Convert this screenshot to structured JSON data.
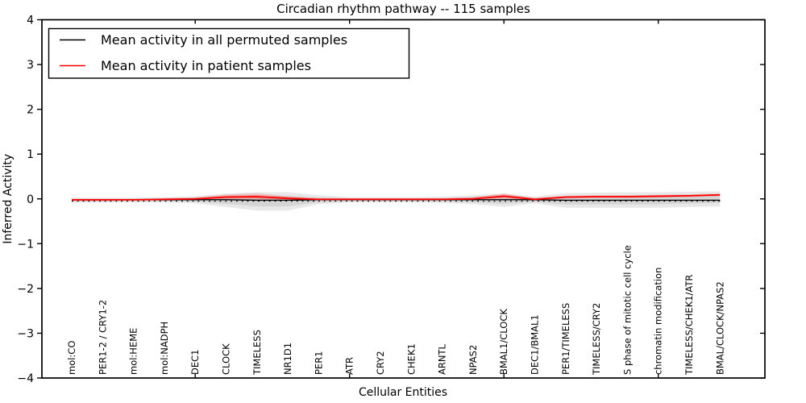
{
  "chart_data": {
    "type": "line",
    "title": "Circadian rhythm pathway -- 115 samples",
    "xlabel": "Cellular Entities",
    "ylabel": "Inferred Activity",
    "ylim": [
      -4,
      4
    ],
    "yticks": [
      -4,
      -3,
      -2,
      -1,
      0,
      1,
      2,
      3,
      4
    ],
    "grid": false,
    "background_color": "#ffffff",
    "axis_color": "#000000",
    "categories": [
      "mol:CO",
      "PER1-2 / CRY1-2",
      "mol:HEME",
      "mol:NADPH",
      "DEC1",
      "CLOCK",
      "TIMELESS",
      "NR1D1",
      "PER1",
      "ATR",
      "CRY2",
      "CHEK1",
      "ARNTL",
      "NPAS2",
      "BMAL1/CLOCK",
      "DEC1/BMAL1",
      "PER1/TIMELESS",
      "TIMELESS/CRY2",
      "S phase of mitotic cell cycle",
      "chromatin modification",
      "TIMELESS/CHEK1/ATR",
      "BMAL/CLOCK/NPAS2"
    ],
    "series": [
      {
        "name": "Mean activity in all permuted samples",
        "color": "#000000",
        "linewidth": 1.4,
        "values": [
          -0.02,
          -0.02,
          -0.02,
          -0.02,
          -0.02,
          -0.02,
          -0.03,
          -0.03,
          -0.02,
          -0.02,
          -0.02,
          -0.02,
          -0.02,
          -0.02,
          -0.02,
          -0.02,
          -0.03,
          -0.03,
          -0.03,
          -0.03,
          -0.03,
          -0.03
        ]
      },
      {
        "name": "Mean activity in patient samples",
        "color": "#ff0000",
        "linewidth": 1.8,
        "values": [
          -0.02,
          -0.02,
          -0.02,
          -0.01,
          0.0,
          0.04,
          0.05,
          0.01,
          -0.01,
          -0.01,
          -0.01,
          -0.01,
          -0.01,
          0.0,
          0.06,
          -0.01,
          0.04,
          0.05,
          0.05,
          0.06,
          0.07,
          0.09
        ]
      }
    ],
    "bands": [
      {
        "name": "permuted-samples-spread",
        "color": "#000000",
        "opacity": 0.09,
        "upper": [
          0.03,
          0.03,
          0.03,
          0.04,
          0.06,
          0.12,
          0.15,
          0.15,
          0.08,
          0.04,
          0.04,
          0.04,
          0.05,
          0.08,
          0.12,
          0.05,
          0.13,
          0.14,
          0.15,
          0.15,
          0.16,
          0.17
        ],
        "lower": [
          -0.08,
          -0.08,
          -0.08,
          -0.08,
          -0.1,
          -0.18,
          -0.26,
          -0.26,
          -0.12,
          -0.08,
          -0.08,
          -0.08,
          -0.09,
          -0.12,
          -0.18,
          -0.1,
          -0.2,
          -0.2,
          -0.2,
          -0.2,
          -0.18,
          -0.17
        ]
      },
      {
        "name": "patient-samples-spread",
        "color": "#ff0000",
        "opacity": 0.18,
        "upper": [
          0.0,
          0.0,
          0.0,
          0.01,
          0.03,
          0.1,
          0.12,
          0.06,
          0.01,
          0.01,
          0.01,
          0.01,
          0.01,
          0.04,
          0.12,
          0.02,
          0.07,
          0.08,
          0.08,
          0.09,
          0.1,
          0.12
        ],
        "lower": [
          -0.05,
          -0.05,
          -0.04,
          -0.04,
          -0.03,
          -0.02,
          -0.02,
          -0.03,
          -0.03,
          -0.03,
          -0.03,
          -0.03,
          -0.03,
          -0.02,
          0.0,
          -0.04,
          0.01,
          0.02,
          0.02,
          0.03,
          0.04,
          0.06
        ]
      }
    ],
    "baseline_dotted": {
      "value": -0.05,
      "color": "#000000",
      "style": "dotted"
    },
    "legend": {
      "position": "upper-left",
      "entries": [
        {
          "label": "Mean activity in all permuted samples",
          "color": "#000000"
        },
        {
          "label": "Mean activity in patient samples",
          "color": "#ff0000"
        }
      ]
    },
    "major_x_tick_indices": [
      4,
      9,
      14,
      19
    ]
  }
}
